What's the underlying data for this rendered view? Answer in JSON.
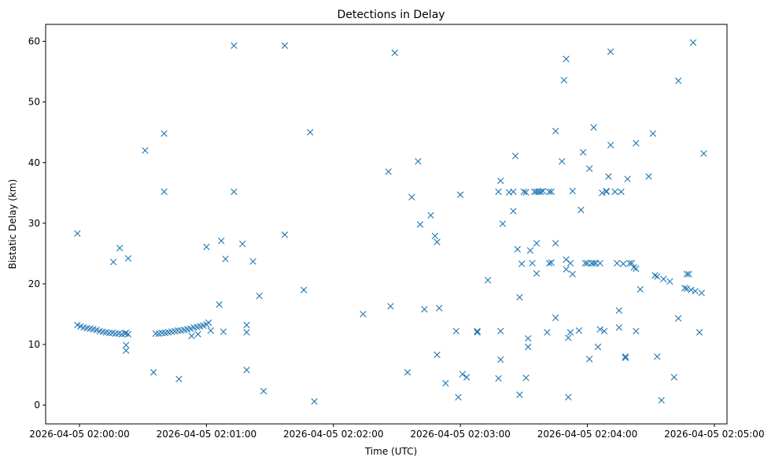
{
  "chart_data": {
    "type": "scatter",
    "title": "Detections in Delay",
    "xlabel": "Time (UTC)",
    "ylabel": "Bistatic Delay (km)",
    "x_unit": "seconds since 2026-04-05 02:00:00",
    "xlim": [
      -16,
      306
    ],
    "ylim": [
      -3.1,
      62.8
    ],
    "xticks": [
      {
        "value": 0,
        "label": "2026-04-05 02:00:00"
      },
      {
        "value": 60,
        "label": "2026-04-05 02:01:00"
      },
      {
        "value": 120,
        "label": "2026-04-05 02:02:00"
      },
      {
        "value": 180,
        "label": "2026-04-05 02:03:00"
      },
      {
        "value": 240,
        "label": "2026-04-05 02:04:00"
      },
      {
        "value": 300,
        "label": "2026-04-05 02:05:00"
      }
    ],
    "yticks": [
      {
        "value": 0,
        "label": "0"
      },
      {
        "value": 10,
        "label": "10"
      },
      {
        "value": 20,
        "label": "20"
      },
      {
        "value": 30,
        "label": "30"
      },
      {
        "value": 40,
        "label": "40"
      },
      {
        "value": 50,
        "label": "50"
      },
      {
        "value": 60,
        "label": "60"
      }
    ],
    "marker": "x",
    "color": "#1f77b4",
    "series": [
      {
        "name": "detections",
        "points": [
          [
            -1,
            28.3
          ],
          [
            -1,
            13.2
          ],
          [
            0.5,
            13.0
          ],
          [
            2,
            12.8
          ],
          [
            3.5,
            12.7
          ],
          [
            5,
            12.6
          ],
          [
            6.5,
            12.5
          ],
          [
            8,
            12.4
          ],
          [
            9.5,
            12.2
          ],
          [
            11,
            12.1
          ],
          [
            12.5,
            12.0
          ],
          [
            14,
            11.9
          ],
          [
            15.5,
            11.9
          ],
          [
            17,
            11.8
          ],
          [
            18.5,
            11.8
          ],
          [
            20,
            11.7
          ],
          [
            21.5,
            11.8
          ],
          [
            22,
            11.9
          ],
          [
            23,
            11.7
          ],
          [
            16,
            23.6
          ],
          [
            19,
            25.9
          ],
          [
            22,
            9.9
          ],
          [
            22,
            9.0
          ],
          [
            23,
            24.2
          ],
          [
            31,
            42.0
          ],
          [
            35,
            5.4
          ],
          [
            36,
            11.8
          ],
          [
            37.5,
            11.8
          ],
          [
            39,
            11.9
          ],
          [
            40.5,
            11.9
          ],
          [
            42,
            12.0
          ],
          [
            43.5,
            12.1
          ],
          [
            45,
            12.2
          ],
          [
            46.5,
            12.3
          ],
          [
            48,
            12.3
          ],
          [
            49.5,
            12.4
          ],
          [
            51,
            12.5
          ],
          [
            52.5,
            12.6
          ],
          [
            54,
            12.8
          ],
          [
            55.5,
            12.9
          ],
          [
            57,
            13.0
          ],
          [
            58.5,
            13.1
          ],
          [
            60,
            13.3
          ],
          [
            61,
            13.6
          ],
          [
            40,
            44.8
          ],
          [
            40,
            35.2
          ],
          [
            47,
            4.3
          ],
          [
            53,
            11.4
          ],
          [
            56,
            11.7
          ],
          [
            60,
            26.1
          ],
          [
            62,
            12.3
          ],
          [
            66,
            16.6
          ],
          [
            67,
            27.1
          ],
          [
            68,
            12.1
          ],
          [
            69,
            24.1
          ],
          [
            73,
            35.2
          ],
          [
            73,
            59.3
          ],
          [
            77,
            26.6
          ],
          [
            79,
            12.0
          ],
          [
            79,
            13.2
          ],
          [
            79,
            5.8
          ],
          [
            82,
            23.7
          ],
          [
            85,
            18.0
          ],
          [
            87,
            2.3
          ],
          [
            97,
            28.1
          ],
          [
            97,
            59.3
          ],
          [
            106,
            19.0
          ],
          [
            109,
            45.0
          ],
          [
            111,
            0.6
          ],
          [
            134,
            15.0
          ],
          [
            146,
            38.5
          ],
          [
            147,
            16.3
          ],
          [
            149,
            58.1
          ],
          [
            155,
            5.4
          ],
          [
            157,
            34.3
          ],
          [
            160,
            40.2
          ],
          [
            161,
            29.8
          ],
          [
            163,
            15.8
          ],
          [
            166,
            31.3
          ],
          [
            168,
            27.9
          ],
          [
            169,
            26.9
          ],
          [
            169,
            8.3
          ],
          [
            170,
            16.0
          ],
          [
            173,
            3.6
          ],
          [
            178,
            12.2
          ],
          [
            179,
            1.3
          ],
          [
            180,
            34.7
          ],
          [
            181,
            5.1
          ],
          [
            183,
            4.6
          ],
          [
            188,
            12.2
          ],
          [
            188,
            12.0
          ],
          [
            193,
            20.6
          ],
          [
            198,
            35.2
          ],
          [
            198,
            4.4
          ],
          [
            199,
            7.5
          ],
          [
            199,
            12.2
          ],
          [
            199,
            37.0
          ],
          [
            200,
            29.9
          ],
          [
            203,
            35.1
          ],
          [
            205,
            35.2
          ],
          [
            205,
            32.0
          ],
          [
            206,
            41.1
          ],
          [
            207,
            25.7
          ],
          [
            208,
            17.8
          ],
          [
            208,
            1.7
          ],
          [
            209,
            23.3
          ],
          [
            210,
            35.2
          ],
          [
            211,
            35.1
          ],
          [
            211,
            4.5
          ],
          [
            212,
            11.0
          ],
          [
            212,
            9.6
          ],
          [
            213,
            25.5
          ],
          [
            214,
            23.4
          ],
          [
            215,
            35.2
          ],
          [
            216,
            35.2
          ],
          [
            217,
            35.2
          ],
          [
            218,
            35.2
          ],
          [
            219,
            35.3
          ],
          [
            216,
            26.7
          ],
          [
            216,
            21.7
          ],
          [
            221,
            12.0
          ],
          [
            222,
            35.2
          ],
          [
            223,
            35.2
          ],
          [
            222,
            23.4
          ],
          [
            223,
            23.5
          ],
          [
            225,
            45.2
          ],
          [
            225,
            14.4
          ],
          [
            225,
            26.7
          ],
          [
            228,
            40.2
          ],
          [
            229,
            53.6
          ],
          [
            230,
            57.1
          ],
          [
            230,
            22.4
          ],
          [
            230,
            24.0
          ],
          [
            231,
            1.3
          ],
          [
            231,
            11.1
          ],
          [
            232,
            12.0
          ],
          [
            232,
            23.4
          ],
          [
            233,
            35.3
          ],
          [
            233,
            21.6
          ],
          [
            236,
            12.3
          ],
          [
            237,
            32.2
          ],
          [
            238,
            41.7
          ],
          [
            239,
            23.4
          ],
          [
            240,
            23.4
          ],
          [
            241,
            7.6
          ],
          [
            241,
            39.0
          ],
          [
            242,
            23.4
          ],
          [
            243,
            23.4
          ],
          [
            243,
            45.8
          ],
          [
            244,
            23.4
          ],
          [
            245,
            9.6
          ],
          [
            246,
            23.4
          ],
          [
            246,
            12.5
          ],
          [
            247,
            35.0
          ],
          [
            248,
            12.2
          ],
          [
            249,
            35.2
          ],
          [
            249,
            35.3
          ],
          [
            250,
            37.7
          ],
          [
            251,
            42.9
          ],
          [
            251,
            58.3
          ],
          [
            253,
            35.2
          ],
          [
            254,
            23.4
          ],
          [
            255,
            15.6
          ],
          [
            255,
            12.8
          ],
          [
            256,
            35.2
          ],
          [
            257,
            23.3
          ],
          [
            258,
            8.0
          ],
          [
            258,
            7.8
          ],
          [
            259,
            37.3
          ],
          [
            260,
            23.4
          ],
          [
            261,
            23.4
          ],
          [
            262,
            22.7
          ],
          [
            263,
            22.5
          ],
          [
            263,
            43.2
          ],
          [
            263,
            12.2
          ],
          [
            265,
            19.1
          ],
          [
            269,
            37.7
          ],
          [
            271,
            44.8
          ],
          [
            272,
            21.4
          ],
          [
            273,
            21.2
          ],
          [
            273,
            8.0
          ],
          [
            275,
            0.8
          ],
          [
            276,
            20.8
          ],
          [
            279,
            20.4
          ],
          [
            281,
            4.6
          ],
          [
            283,
            14.3
          ],
          [
            283,
            53.5
          ],
          [
            286,
            19.3
          ],
          [
            287,
            19.2
          ],
          [
            287,
            21.6
          ],
          [
            288,
            21.6
          ],
          [
            289,
            19.0
          ],
          [
            290,
            59.8
          ],
          [
            291,
            18.8
          ],
          [
            293,
            12.0
          ],
          [
            294,
            18.5
          ],
          [
            295,
            41.5
          ]
        ]
      }
    ]
  }
}
